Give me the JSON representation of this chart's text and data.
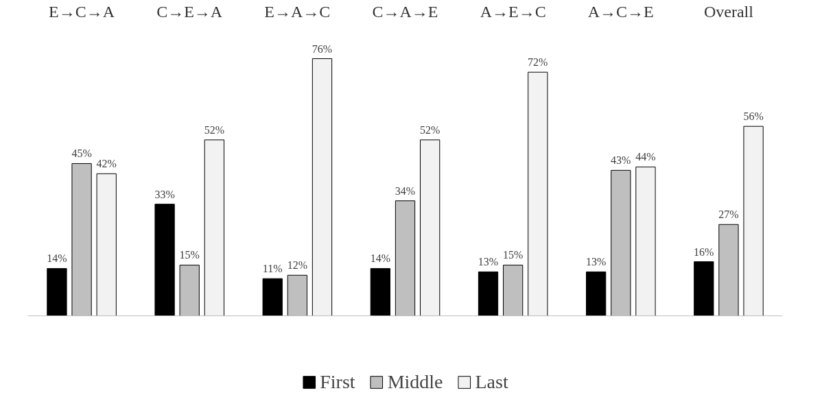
{
  "chart_data": {
    "type": "bar",
    "categories": [
      "E→C→A",
      "C→E→A",
      "E→A→C",
      "C→A→E",
      "A→E→C",
      "A→C→E",
      "Overall"
    ],
    "series": [
      {
        "name": "First",
        "color": "#000000",
        "values": [
          14,
          33,
          11,
          14,
          13,
          13,
          16
        ],
        "value_labels": [
          "14%",
          "33%",
          "11%",
          "14%",
          "13%",
          "13%",
          "16%"
        ]
      },
      {
        "name": "Middle",
        "color": "#bfbfbf",
        "values": [
          45,
          15,
          12,
          34,
          15,
          43,
          27
        ],
        "value_labels": [
          "45%",
          "15%",
          "12%",
          "34%",
          "15%",
          "43%",
          "27%"
        ]
      },
      {
        "name": "Last",
        "color": "#f2f2f2",
        "values": [
          42,
          52,
          76,
          52,
          72,
          44,
          56
        ],
        "value_labels": [
          "42%",
          "52%",
          "76%",
          "52%",
          "72%",
          "44%",
          "56%"
        ]
      }
    ],
    "legend": "bottom",
    "grid": false
  }
}
